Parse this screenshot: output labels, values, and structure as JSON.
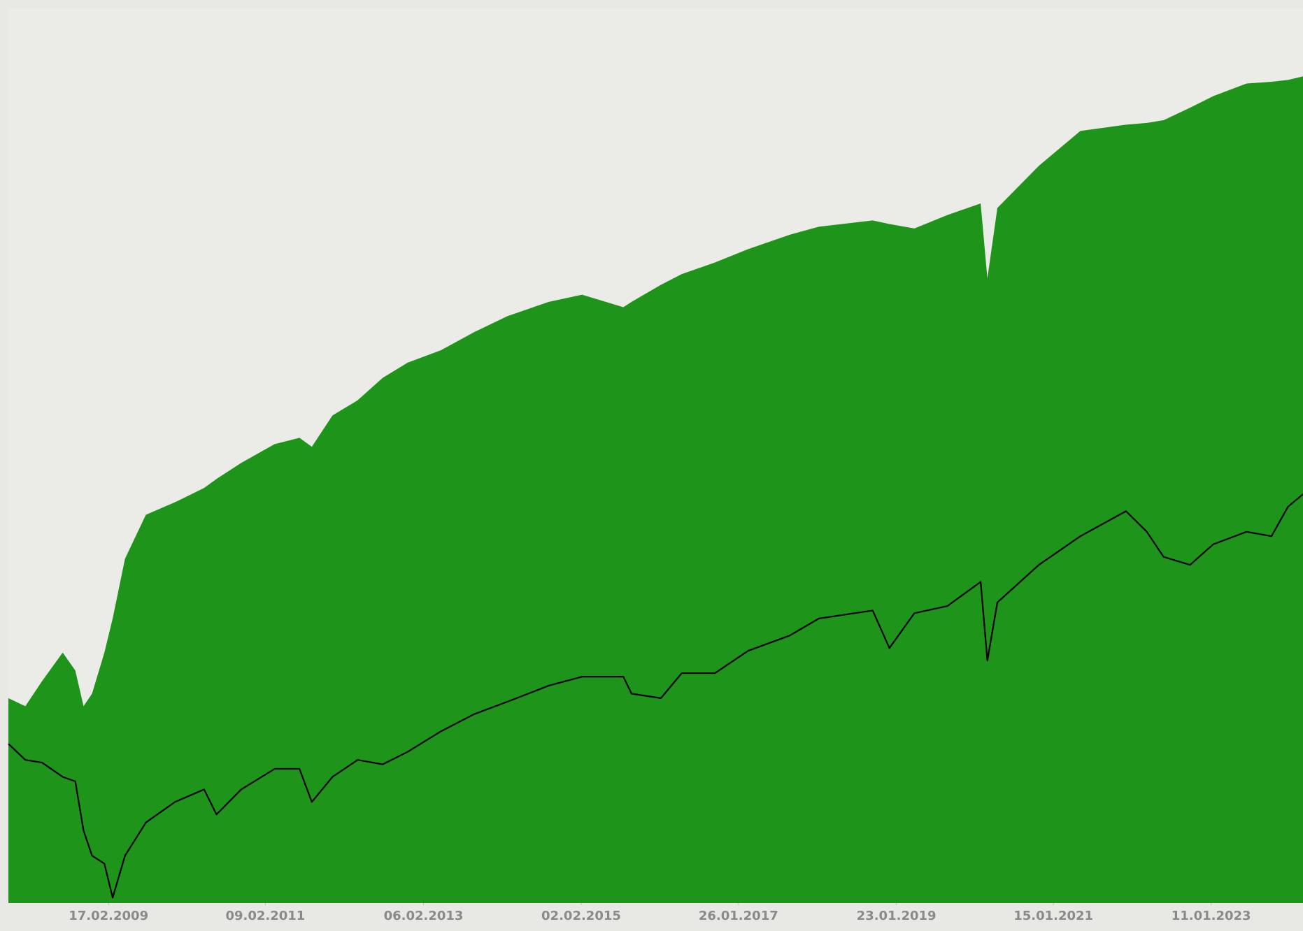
{
  "chart_data": {
    "type": "area",
    "x": [
      "2007-11-14",
      "2008-01-31",
      "2008-04-17",
      "2008-07-21",
      "2008-09-17",
      "2008-10-25",
      "2008-12-03",
      "2009-01-29",
      "2009-03-08",
      "2009-05-04",
      "2009-08-08",
      "2009-12-20",
      "2010-05-03",
      "2010-06-29",
      "2010-10-21",
      "2011-03-24",
      "2011-07-16",
      "2011-09-11",
      "2011-12-15",
      "2012-04-09",
      "2012-08-02",
      "2012-11-25",
      "2013-04-28",
      "2013-09-26",
      "2014-02-27",
      "2014-09-06",
      "2015-02-06",
      "2015-08-15",
      "2015-09-22",
      "2016-02-04",
      "2016-05-10",
      "2016-10-10",
      "2017-03-12",
      "2017-09-19",
      "2018-01-31",
      "2018-10-06",
      "2018-12-22",
      "2019-04-16",
      "2019-09-15",
      "2020-02-15",
      "2020-03-17",
      "2020-05-02",
      "2020-11-09",
      "2021-05-19",
      "2021-12-15",
      "2022-03-21",
      "2022-06-06",
      "2022-10-06",
      "2023-01-21",
      "2023-06-23",
      "2023-10-16",
      "2023-12-31",
      "2024-03-09"
    ],
    "series": [
      {
        "type": "area",
        "color": "#1f941a",
        "values": [
          22.9,
          22.0,
          24.8,
          28.0,
          26,
          22,
          23.4,
          28,
          31.8,
          38.5,
          43.4,
          44.8,
          46.4,
          47.4,
          49.2,
          51.3,
          52.0,
          51.0,
          54.5,
          56.2,
          58.7,
          60.4,
          61.8,
          63.8,
          65.6,
          67.2,
          68.0,
          66.6,
          67.2,
          69.1,
          70.3,
          71.6,
          73.1,
          74.7,
          75.6,
          76.3,
          75.9,
          75.4,
          76.9,
          78.2,
          69.8,
          77.7,
          82.4,
          86.3,
          87.0,
          87.2,
          87.5,
          88.9,
          90.2,
          91.6,
          91.8,
          92.0,
          92.4
        ]
      },
      {
        "type": "line",
        "color": "#000000",
        "values": [
          17.8,
          16.0,
          15.7,
          14.1,
          13.6,
          8.1,
          5.3,
          4.4,
          0.6,
          5.3,
          9.0,
          11.3,
          12.7,
          9.9,
          12.7,
          15.0,
          15.0,
          11.3,
          14.1,
          16.0,
          15.5,
          16.9,
          19.2,
          21.1,
          22.5,
          24.3,
          25.3,
          25.3,
          23.4,
          22.9,
          25.7,
          25.7,
          28.2,
          29.9,
          31.8,
          32.7,
          28.5,
          32.4,
          33.2,
          35.9,
          27.1,
          33.6,
          37.8,
          41.0,
          43.8,
          41.5,
          38.7,
          37.8,
          40.1,
          41.5,
          41.0,
          44.3,
          45.7
        ]
      }
    ],
    "xlim": [
      "2007-11-14",
      "2024-03-09"
    ],
    "xticks": [
      {
        "value": "2009-02-17",
        "label": "17.02.2009"
      },
      {
        "value": "2011-02-09",
        "label": "09.02.2011"
      },
      {
        "value": "2013-02-06",
        "label": "06.02.2013"
      },
      {
        "value": "2015-02-02",
        "label": "02.02.2015"
      },
      {
        "value": "2017-01-26",
        "label": "26.01.2017"
      },
      {
        "value": "2019-01-23",
        "label": "23.01.2019"
      },
      {
        "value": "2021-01-15",
        "label": "15.01.2021"
      },
      {
        "value": "2023-01-11",
        "label": "11.01.2023"
      }
    ],
    "ylim": [
      0,
      100
    ]
  }
}
